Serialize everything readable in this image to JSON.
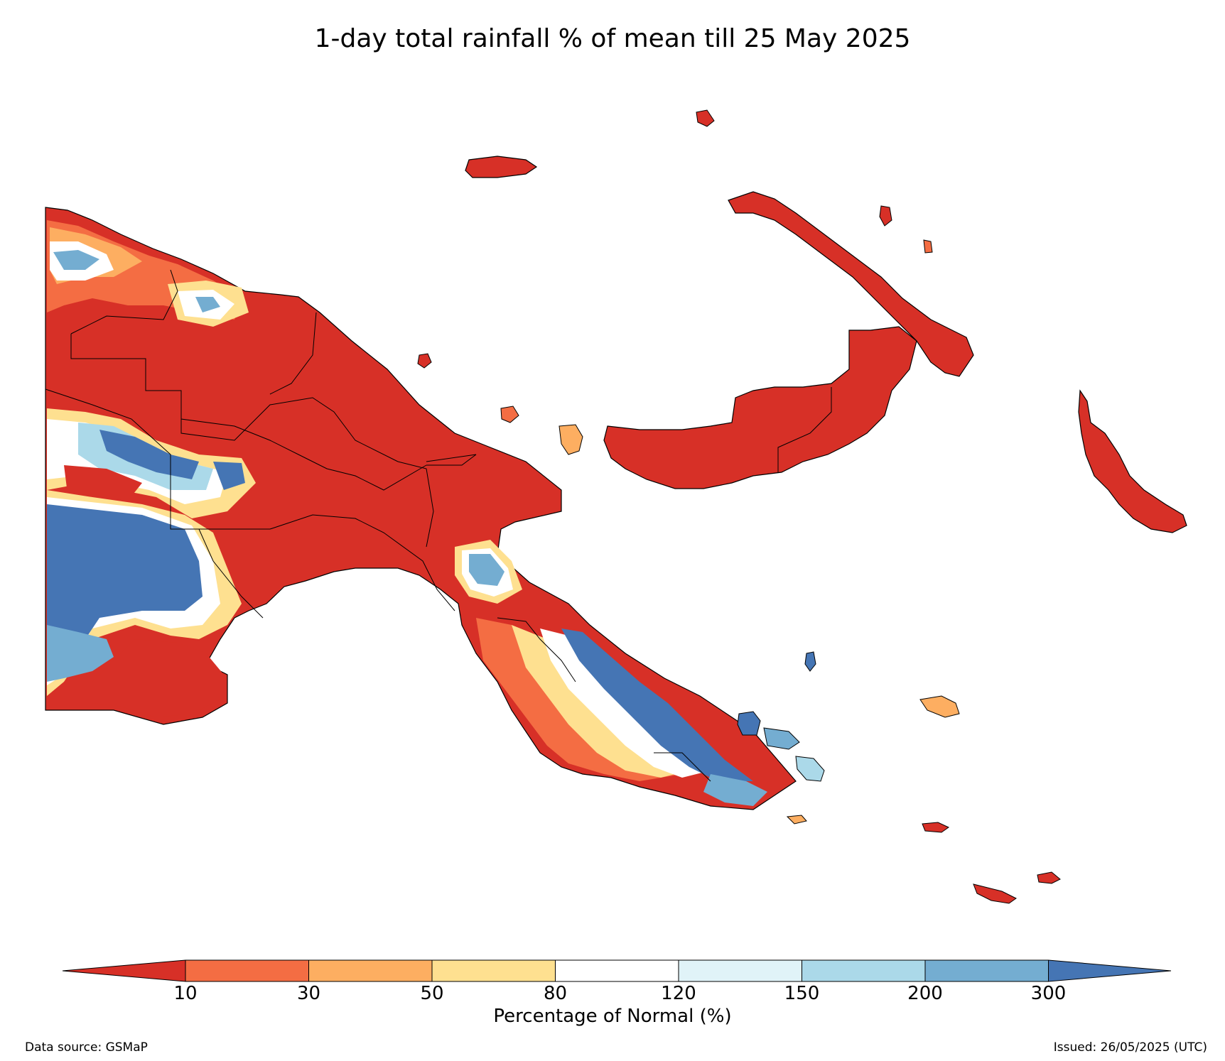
{
  "title": "1-day total rainfall % of mean till 25 May 2025",
  "colorbar": {
    "title": "Percentage of Normal (%)",
    "ticks": [
      "10",
      "30",
      "50",
      "80",
      "120",
      "150",
      "200",
      "300"
    ],
    "colors": [
      "#d73027",
      "#f46d43",
      "#fdae61",
      "#fee090",
      "#ffffff",
      "#e0f3f8",
      "#abd9e9",
      "#74add1",
      "#4575b4"
    ]
  },
  "footer": {
    "source": "Data source: GSMaP",
    "issued": "Issued: 26/05/2025 (UTC)"
  }
}
